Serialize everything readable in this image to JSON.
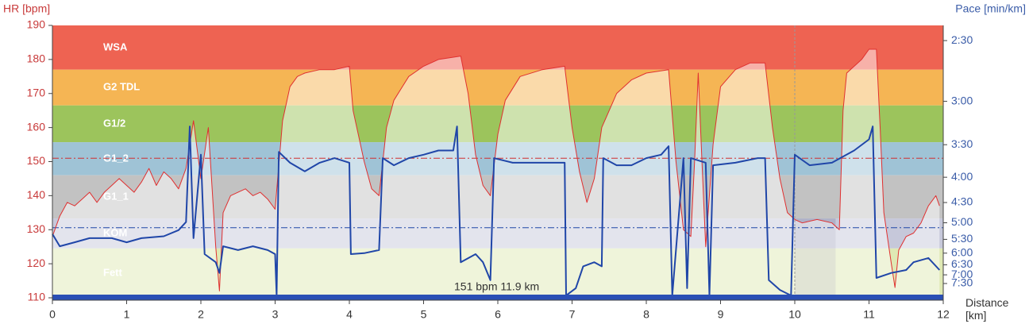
{
  "chart_data": {
    "type": "line",
    "ylabel": "HR [bpm]",
    "y2label": "Pace [min/km]",
    "xlabel": "Distance [km]",
    "xlim": [
      0,
      12
    ],
    "xticks": [
      0,
      1,
      2,
      3,
      4,
      5,
      6,
      7,
      8,
      9,
      10,
      11,
      12
    ],
    "ylim": [
      110,
      190
    ],
    "yticks": [
      110,
      120,
      130,
      140,
      150,
      160,
      170,
      180,
      190
    ],
    "y2lim": [
      2.4,
      8.5
    ],
    "y2scale": "reciprocal",
    "y2ticks": [
      {
        "value": 2.5,
        "label": "2:30"
      },
      {
        "value": 3,
        "label": "3:00"
      },
      {
        "value": 3.5,
        "label": "3:30"
      },
      {
        "value": 4,
        "label": "4:00"
      },
      {
        "value": 4.5,
        "label": "4:30"
      },
      {
        "value": 5,
        "label": "5:00"
      },
      {
        "value": 5.5,
        "label": "5:30"
      },
      {
        "value": 6,
        "label": "6:00"
      },
      {
        "value": 6.5,
        "label": "6:30"
      },
      {
        "value": 7,
        "label": "7:00"
      },
      {
        "value": 7.5,
        "label": "7:30"
      }
    ],
    "zones": [
      {
        "label": "WSA",
        "from": 177,
        "to": 190,
        "color": "#ee6352"
      },
      {
        "label": "G2 TDL",
        "from": 166.5,
        "to": 177,
        "color": "#f5b554"
      },
      {
        "label": "G1/2",
        "from": 155.7,
        "to": 166.5,
        "color": "#9cc45c"
      },
      {
        "label": "G1_2",
        "from": 146,
        "to": 155.7,
        "color": "#9fc3d6"
      },
      {
        "label": "G1_1",
        "from": 133.3,
        "to": 146,
        "color": "#c2c2c2"
      },
      {
        "label": "KOM",
        "from": 124.5,
        "to": 133.3,
        "color": "#c6c8da"
      },
      {
        "label": "Fett",
        "from": 110,
        "to": 124.5,
        "color": "#dfe9b4"
      }
    ],
    "hr_ref": 151,
    "pace_ref": 5.14,
    "cursor_x": 10,
    "selection": [
      10,
      10.55
    ],
    "annotation": "151 bpm 11.9 km",
    "series": [
      {
        "color": "#e03030",
        "x": [
          0,
          0.1,
          0.2,
          0.3,
          0.4,
          0.5,
          0.6,
          0.7,
          0.8,
          0.9,
          1,
          1.1,
          1.2,
          1.3,
          1.4,
          1.5,
          1.6,
          1.7,
          1.8,
          1.9,
          2,
          2.1,
          2.2,
          2.25,
          2.3,
          2.4,
          2.5,
          2.6,
          2.7,
          2.8,
          2.9,
          3,
          3.1,
          3.2,
          3.3,
          3.4,
          3.6,
          3.8,
          4,
          4.05,
          4.2,
          4.3,
          4.4,
          4.5,
          4.6,
          4.8,
          5,
          5.2,
          5.5,
          5.6,
          5.7,
          5.8,
          5.9,
          6,
          6.1,
          6.3,
          6.6,
          6.9,
          7,
          7.1,
          7.2,
          7.3,
          7.4,
          7.6,
          7.8,
          8,
          8.3,
          8.4,
          8.5,
          8.6,
          8.65,
          8.7,
          8.75,
          8.8,
          8.9,
          9,
          9.2,
          9.4,
          9.6,
          9.7,
          9.8,
          9.9,
          10,
          10.1,
          10.3,
          10.5,
          10.6,
          10.65,
          10.7,
          10.9,
          11,
          11.1,
          11.15,
          11.2,
          11.3,
          11.35,
          11.4,
          11.5,
          11.6,
          11.7,
          11.8,
          11.9,
          11.95
        ],
        "values": [
          128,
          134,
          138,
          137,
          139,
          141,
          138,
          141,
          143,
          145,
          143,
          141,
          144,
          148,
          143,
          147,
          145,
          142,
          148,
          162,
          145,
          160,
          125,
          112,
          135,
          140,
          141,
          142,
          140,
          141,
          139,
          136,
          162,
          172,
          175,
          176,
          177,
          177,
          178,
          165,
          150,
          142,
          140,
          160,
          168,
          175,
          178,
          180,
          181,
          170,
          152,
          143,
          140,
          158,
          168,
          175,
          177,
          178,
          160,
          147,
          138,
          145,
          160,
          170,
          174,
          176,
          177,
          150,
          130,
          128,
          150,
          176,
          150,
          125,
          155,
          172,
          177,
          179,
          179,
          160,
          145,
          135,
          133,
          132,
          133,
          132,
          130,
          165,
          176,
          180,
          183,
          183,
          160,
          135,
          120,
          113,
          124,
          128,
          129,
          132,
          137,
          140,
          137
        ]
      },
      {
        "color": "#2046a8",
        "axis": "y2",
        "x": [
          0,
          0.1,
          0.3,
          0.5,
          0.8,
          1,
          1.2,
          1.5,
          1.7,
          1.8,
          1.85,
          1.9,
          2,
          2.05,
          2.2,
          2.25,
          2.3,
          2.5,
          2.7,
          2.9,
          3,
          3.02,
          3.05,
          3.2,
          3.4,
          3.6,
          3.8,
          4,
          4.02,
          4.2,
          4.4,
          4.45,
          4.6,
          4.8,
          5,
          5.2,
          5.4,
          5.45,
          5.5,
          5.7,
          5.8,
          5.9,
          5.95,
          6.2,
          6.5,
          6.8,
          6.9,
          6.92,
          7.05,
          7.15,
          7.3,
          7.4,
          7.42,
          7.6,
          7.8,
          8,
          8.2,
          8.3,
          8.35,
          8.5,
          8.55,
          8.6,
          8.8,
          8.85,
          8.9,
          9.2,
          9.5,
          9.6,
          9.65,
          9.8,
          9.95,
          10,
          10.2,
          10.5,
          10.8,
          11,
          11.05,
          11.1,
          11.3,
          11.5,
          11.6,
          11.8,
          11.95
        ],
        "values": [
          5.33,
          5.74,
          5.6,
          5.46,
          5.46,
          5.6,
          5.46,
          5.4,
          5.21,
          4.98,
          3.27,
          5.46,
          3.64,
          6.04,
          6.38,
          6.9,
          5.74,
          5.88,
          5.74,
          5.88,
          6.04,
          8.32,
          3.6,
          3.76,
          3.9,
          3.76,
          3.69,
          3.76,
          6.04,
          6.0,
          5.88,
          3.69,
          3.8,
          3.69,
          3.64,
          3.58,
          3.58,
          3.27,
          6.38,
          6.04,
          6.38,
          7.3,
          3.69,
          3.76,
          3.76,
          3.76,
          3.76,
          8.32,
          7.8,
          6.57,
          6.38,
          6.57,
          3.69,
          3.8,
          3.8,
          3.69,
          3.64,
          3.52,
          8.32,
          3.69,
          7.8,
          3.69,
          3.76,
          8.32,
          3.8,
          3.76,
          3.69,
          3.69,
          7.3,
          7.92,
          8.32,
          3.64,
          3.8,
          3.76,
          3.58,
          3.43,
          3.27,
          7.17,
          6.9,
          6.75,
          6.38,
          6.2,
          6.75
        ]
      }
    ]
  }
}
